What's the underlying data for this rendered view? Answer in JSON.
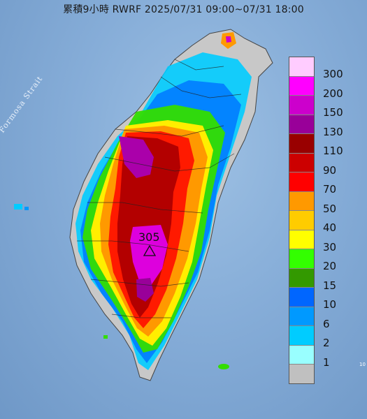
{
  "title": "累積9小時 RWRF 2025/07/31 09:00~07/31 18:00",
  "strait_label": "Formosa Strait",
  "max_label": "305",
  "corner_mark": "10",
  "legend": [
    {
      "label": "300",
      "color": "#ffccff"
    },
    {
      "label": "200",
      "color": "#ff00ff"
    },
    {
      "label": "150",
      "color": "#cc00cc"
    },
    {
      "label": "130",
      "color": "#990099"
    },
    {
      "label": "110",
      "color": "#990000"
    },
    {
      "label": "90",
      "color": "#cc0000"
    },
    {
      "label": "70",
      "color": "#ff0000"
    },
    {
      "label": "50",
      "color": "#ff9900"
    },
    {
      "label": "40",
      "color": "#ffcc00"
    },
    {
      "label": "30",
      "color": "#ffff00"
    },
    {
      "label": "20",
      "color": "#33ff00"
    },
    {
      "label": "15",
      "color": "#339900"
    },
    {
      "label": "10",
      "color": "#0066ff"
    },
    {
      "label": "6",
      "color": "#0099ff"
    },
    {
      "label": "2",
      "color": "#00ccff"
    },
    {
      "label": "1",
      "color": "#99ffff"
    },
    {
      "label": "",
      "color": "#c0c0c0"
    }
  ]
}
